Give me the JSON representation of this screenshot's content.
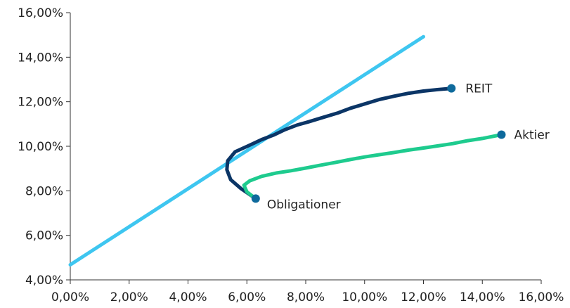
{
  "chart_data": {
    "type": "line",
    "xlim": [
      0,
      16
    ],
    "ylim": [
      4,
      16
    ],
    "x_ticks": [
      "0,00%",
      "2,00%",
      "4,00%",
      "6,00%",
      "8,00%",
      "10,00%",
      "12,00%",
      "14,00%",
      "16,00%"
    ],
    "y_ticks": [
      "4,00%",
      "6,00%",
      "8,00%",
      "10,00%",
      "12,00%",
      "14,00%",
      "16,00%"
    ],
    "grid": false,
    "series": [
      {
        "color": "#3ec6f0",
        "x": [
          0.0,
          12.0
        ],
        "y": [
          4.68,
          14.92
        ]
      },
      {
        "color": "#0b3566",
        "x": [
          6.3,
          5.8,
          5.45,
          5.32,
          5.35,
          5.6,
          6.1,
          6.5,
          6.9,
          7.3,
          7.7,
          8.1,
          8.6,
          9.1,
          9.5,
          10.0,
          10.5,
          11.0,
          11.5,
          12.0,
          12.5,
          12.95
        ],
        "y": [
          7.65,
          8.1,
          8.5,
          8.95,
          9.35,
          9.75,
          10.05,
          10.3,
          10.5,
          10.75,
          10.95,
          11.1,
          11.3,
          11.5,
          11.7,
          11.9,
          12.1,
          12.25,
          12.38,
          12.48,
          12.55,
          12.6
        ]
      },
      {
        "color": "#1ecb8e",
        "x": [
          6.3,
          6.0,
          5.9,
          6.1,
          6.5,
          7.0,
          7.5,
          8.0,
          8.5,
          9.0,
          9.5,
          10.0,
          10.5,
          11.0,
          11.5,
          12.0,
          12.5,
          13.0,
          13.5,
          14.0,
          14.65
        ],
        "y": [
          7.65,
          7.95,
          8.25,
          8.45,
          8.65,
          8.8,
          8.9,
          9.02,
          9.15,
          9.27,
          9.4,
          9.52,
          9.62,
          9.72,
          9.83,
          9.92,
          10.02,
          10.12,
          10.25,
          10.35,
          10.52
        ]
      }
    ],
    "points": [
      {
        "label": "REIT",
        "x": 12.95,
        "y": 12.6,
        "color": "#0e6a9c"
      },
      {
        "label": "Aktier",
        "x": 14.65,
        "y": 10.52,
        "color": "#0e6a9c"
      },
      {
        "label": "Obligationer",
        "x": 6.3,
        "y": 7.65,
        "color": "#0e6a9c"
      }
    ]
  }
}
